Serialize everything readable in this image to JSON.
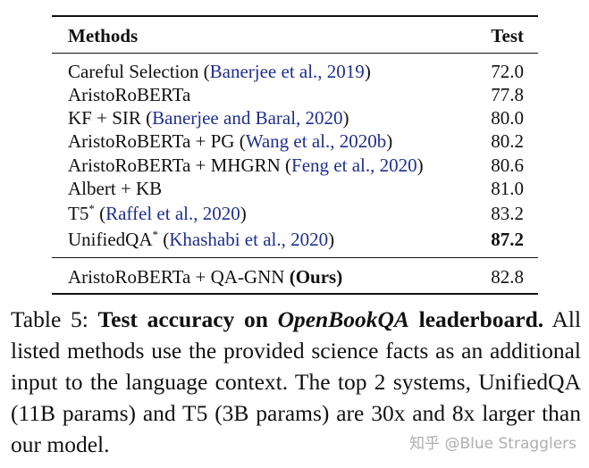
{
  "table": {
    "header": [
      "Methods",
      "Test"
    ],
    "rows": [
      {
        "method": "Careful Selection",
        "citation": "Banerjee et al., 2019",
        "test": "72.0"
      },
      {
        "method": "AristoRoBERTa",
        "test": "77.8"
      },
      {
        "method": "KF + SIR",
        "citation": "Banerjee and Baral, 2020",
        "test": "80.0"
      },
      {
        "method": "AristoRoBERTa + PG",
        "citation": "Wang et al., 2020b",
        "test": "80.2"
      },
      {
        "method": "AristoRoBERTa + MHGRN",
        "citation": "Feng et al., 2020",
        "test": "80.6"
      },
      {
        "method": "Albert + KB",
        "test": "81.0"
      },
      {
        "method": "T5",
        "marker": "*",
        "citation": "Raffel et al., 2020",
        "test": "83.2"
      },
      {
        "method": "UnifiedQA",
        "marker": "*",
        "citation": "Khashabi et al., 2020",
        "test": "87.2",
        "best": true
      }
    ],
    "ours": {
      "method": "AristoRoBERTa + QA-GNN",
      "tag": "Ours",
      "test": "82.8"
    }
  },
  "caption": {
    "label": "Table 5:",
    "title": "Test accuracy on",
    "title_em": "OpenBookQA",
    "title_end": "leaderboard.",
    "text": "All listed methods use the provided science facts as an additional input to the language context. The top 2 systems, UnifiedQA (11B params) and T5 (3B params) are 30x and 8x larger than our model."
  },
  "watermark": "知乎 @Blue Stragglers"
}
